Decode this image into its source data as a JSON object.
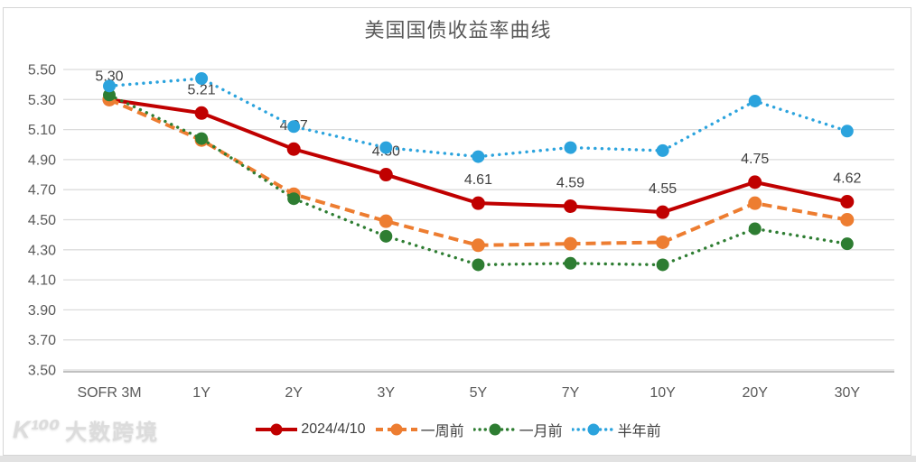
{
  "title": "美国国债收益率曲线",
  "watermark": {
    "logo": "K¹⁰⁰",
    "text": "大数跨境"
  },
  "chart_data": {
    "type": "line",
    "title": "美国国债收益率曲线",
    "xlabel": "",
    "ylabel": "",
    "ylim": [
      3.5,
      5.5
    ],
    "grid": true,
    "legend_position": "bottom",
    "categories": [
      "SOFR 3M",
      "1Y",
      "2Y",
      "3Y",
      "5Y",
      "7Y",
      "10Y",
      "20Y",
      "30Y"
    ],
    "y_ticks": [
      "5.50",
      "5.30",
      "5.10",
      "4.90",
      "4.70",
      "4.50",
      "4.30",
      "4.10",
      "3.90",
      "3.70",
      "3.50"
    ],
    "series": [
      {
        "name": "2024/4/10",
        "color": "#c00000",
        "style": "solid",
        "values": [
          5.3,
          5.21,
          4.97,
          4.8,
          4.61,
          4.59,
          4.55,
          4.75,
          4.62
        ],
        "point_labels": [
          "5.30",
          "5.21",
          "4.97",
          "4.80",
          "4.61",
          "4.59",
          "4.55",
          "4.75",
          "4.62"
        ]
      },
      {
        "name": "一周前",
        "color": "#ed7d31",
        "style": "dashed",
        "values": [
          5.3,
          5.03,
          4.67,
          4.49,
          4.33,
          4.34,
          4.35,
          4.61,
          4.5
        ]
      },
      {
        "name": "一月前",
        "color": "#2e7d32",
        "style": "dotted",
        "values": [
          5.33,
          5.04,
          4.64,
          4.39,
          4.2,
          4.21,
          4.2,
          4.44,
          4.34
        ]
      },
      {
        "name": "半年前",
        "color": "#2ba3dd",
        "style": "dotted",
        "values": [
          5.39,
          5.44,
          5.12,
          4.98,
          4.92,
          4.98,
          4.96,
          5.29,
          5.09
        ]
      }
    ],
    "colors": {
      "grid": "#dcdcdc",
      "axis_line": "#c0c0c0",
      "tick_label": "#595959",
      "data_label": "#3f3f3f"
    }
  }
}
